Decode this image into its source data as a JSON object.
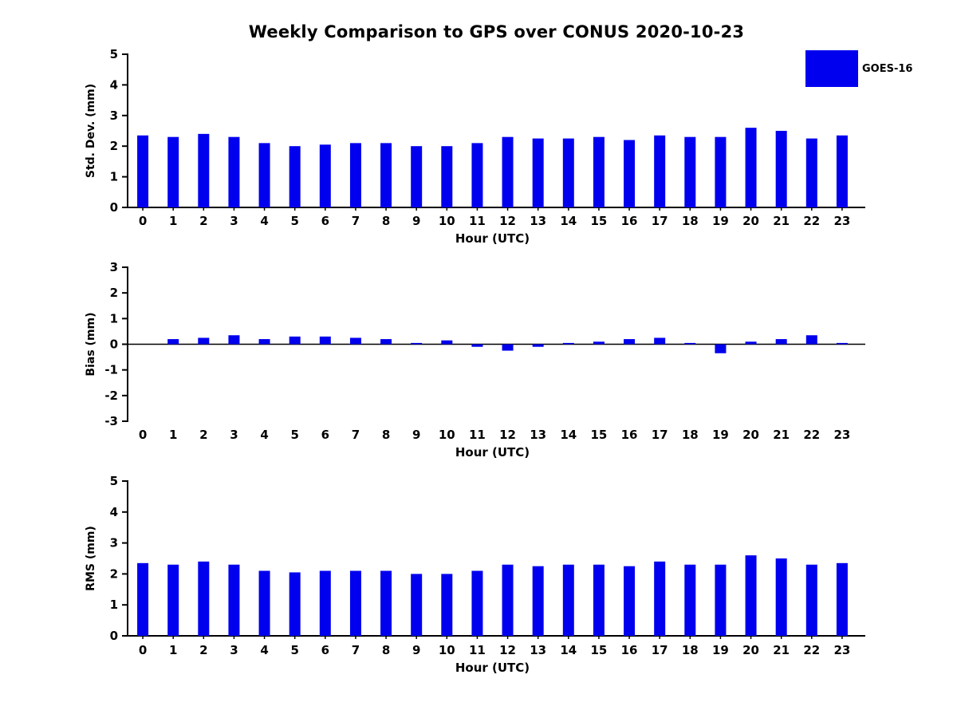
{
  "title": "Weekly Comparison to GPS over CONUS 2020-10-23",
  "legend": {
    "label": "GOES-16",
    "color": "#0000ee"
  },
  "chart_data": [
    {
      "id": "stddev",
      "type": "bar",
      "series": "GOES-16",
      "ylabel": "Std. Dev. (mm)",
      "xlabel": "Hour (UTC)",
      "ylim": [
        0,
        5
      ],
      "yticks": [
        0,
        1,
        2,
        3,
        4,
        5
      ],
      "bar_color": "#0000ee",
      "categories": [
        "0",
        "1",
        "2",
        "3",
        "4",
        "5",
        "6",
        "7",
        "8",
        "9",
        "10",
        "11",
        "12",
        "13",
        "14",
        "15",
        "16",
        "17",
        "18",
        "19",
        "20",
        "21",
        "22",
        "23"
      ],
      "values": [
        2.35,
        2.3,
        2.4,
        2.3,
        2.1,
        2.0,
        2.05,
        2.1,
        2.1,
        2.0,
        2.0,
        2.1,
        2.3,
        2.25,
        2.25,
        2.3,
        2.2,
        2.35,
        2.3,
        2.3,
        2.6,
        2.5,
        2.25,
        2.35
      ]
    },
    {
      "id": "bias",
      "type": "bar",
      "series": "GOES-16",
      "ylabel": "Bias (mm)",
      "xlabel": "Hour (UTC)",
      "ylim": [
        -3,
        3
      ],
      "yticks": [
        -3,
        -2,
        -1,
        0,
        1,
        2,
        3
      ],
      "zero_line": true,
      "bar_color": "#0000ee",
      "categories": [
        "0",
        "1",
        "2",
        "3",
        "4",
        "5",
        "6",
        "7",
        "8",
        "9",
        "10",
        "11",
        "12",
        "13",
        "14",
        "15",
        "16",
        "17",
        "18",
        "19",
        "20",
        "21",
        "22",
        "23"
      ],
      "values": [
        0.0,
        0.2,
        0.25,
        0.35,
        0.2,
        0.3,
        0.3,
        0.25,
        0.2,
        0.05,
        0.15,
        -0.1,
        -0.25,
        -0.1,
        0.05,
        0.1,
        0.2,
        0.25,
        0.05,
        -0.35,
        0.1,
        0.2,
        0.35,
        0.05
      ]
    },
    {
      "id": "rms",
      "type": "bar",
      "series": "GOES-16",
      "ylabel": "RMS (mm)",
      "xlabel": "Hour (UTC)",
      "ylim": [
        0,
        5
      ],
      "yticks": [
        0,
        1,
        2,
        3,
        4,
        5
      ],
      "bar_color": "#0000ee",
      "categories": [
        "0",
        "1",
        "2",
        "3",
        "4",
        "5",
        "6",
        "7",
        "8",
        "9",
        "10",
        "11",
        "12",
        "13",
        "14",
        "15",
        "16",
        "17",
        "18",
        "19",
        "20",
        "21",
        "22",
        "23"
      ],
      "values": [
        2.35,
        2.3,
        2.4,
        2.3,
        2.1,
        2.05,
        2.1,
        2.1,
        2.1,
        2.0,
        2.0,
        2.1,
        2.3,
        2.25,
        2.3,
        2.3,
        2.25,
        2.4,
        2.3,
        2.3,
        2.6,
        2.5,
        2.3,
        2.35
      ]
    }
  ]
}
